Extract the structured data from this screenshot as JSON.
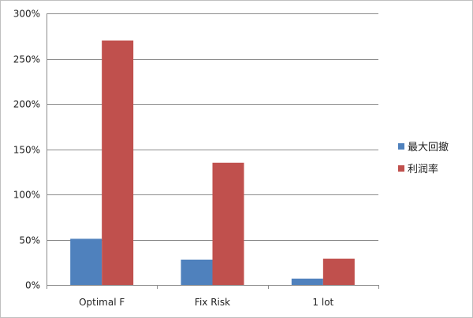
{
  "chart_data": {
    "type": "bar",
    "categories": [
      "Optimal F",
      "Fix Risk",
      "1 lot"
    ],
    "series": [
      {
        "name": "最大回撤",
        "color": "#4f81bd",
        "values": [
          51,
          28,
          7
        ]
      },
      {
        "name": "利润率",
        "color": "#c0504d",
        "values": [
          270,
          135,
          29
        ]
      }
    ],
    "ylim": [
      0,
      300
    ],
    "yticks": [
      0,
      50,
      100,
      150,
      200,
      250,
      300
    ],
    "ytick_suffix": "%",
    "grid": true,
    "legend_position": "right"
  }
}
